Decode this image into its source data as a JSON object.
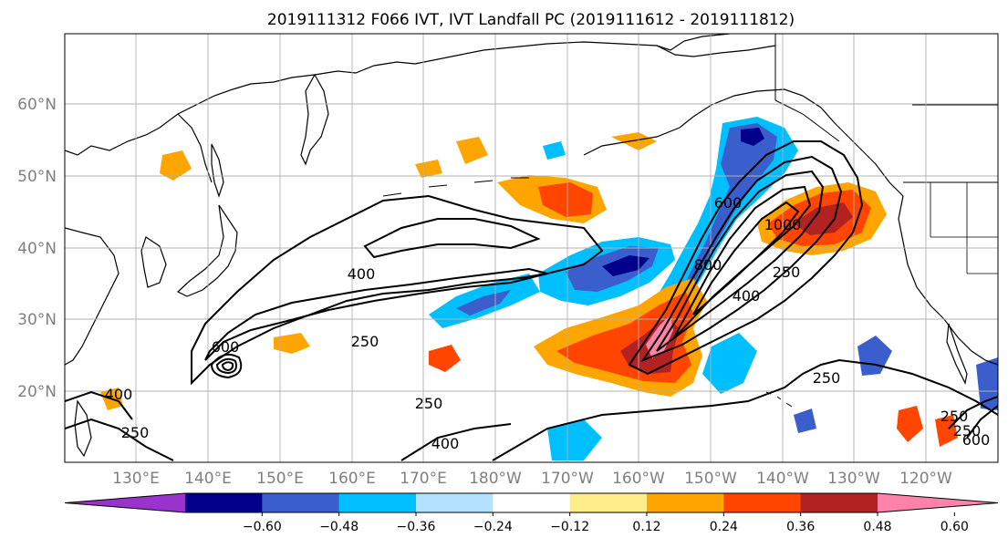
{
  "title": "2019111312 F066 IVT, IVT Landfall PC (2019111612 - 2019111812)",
  "lon_labels": [
    "130°E",
    "140°E",
    "150°E",
    "160°E",
    "170°E",
    "180°W",
    "170°W",
    "160°W",
    "150°W",
    "140°W",
    "130°W",
    "120°W"
  ],
  "lat_labels": [
    "60°N",
    "50°N",
    "40°N",
    "30°N",
    "20°N"
  ],
  "colorbar": {
    "colors": [
      "#9a32cd",
      "#00008b",
      "#3a5fcd",
      "#00bfff",
      "#b2e2ff",
      "#ffffff",
      "#ffec8b",
      "#ffa500",
      "#ff4500",
      "#b22222",
      "#ff82ab"
    ],
    "ticks": [
      "−0.60",
      "−0.48",
      "−0.36",
      "−0.24",
      "−0.12",
      "0.12",
      "0.24",
      "0.36",
      "0.48",
      "0.60"
    ],
    "extend": "both"
  },
  "contour_labels": [
    "400",
    "250",
    "600",
    "250",
    "400",
    "250",
    "250",
    "400",
    "600",
    "1000",
    "800",
    "400",
    "250",
    "250",
    "250",
    "600"
  ],
  "colors": {
    "coast": "#000000",
    "grid": "#b0b0b0",
    "contour": "#000000"
  }
}
